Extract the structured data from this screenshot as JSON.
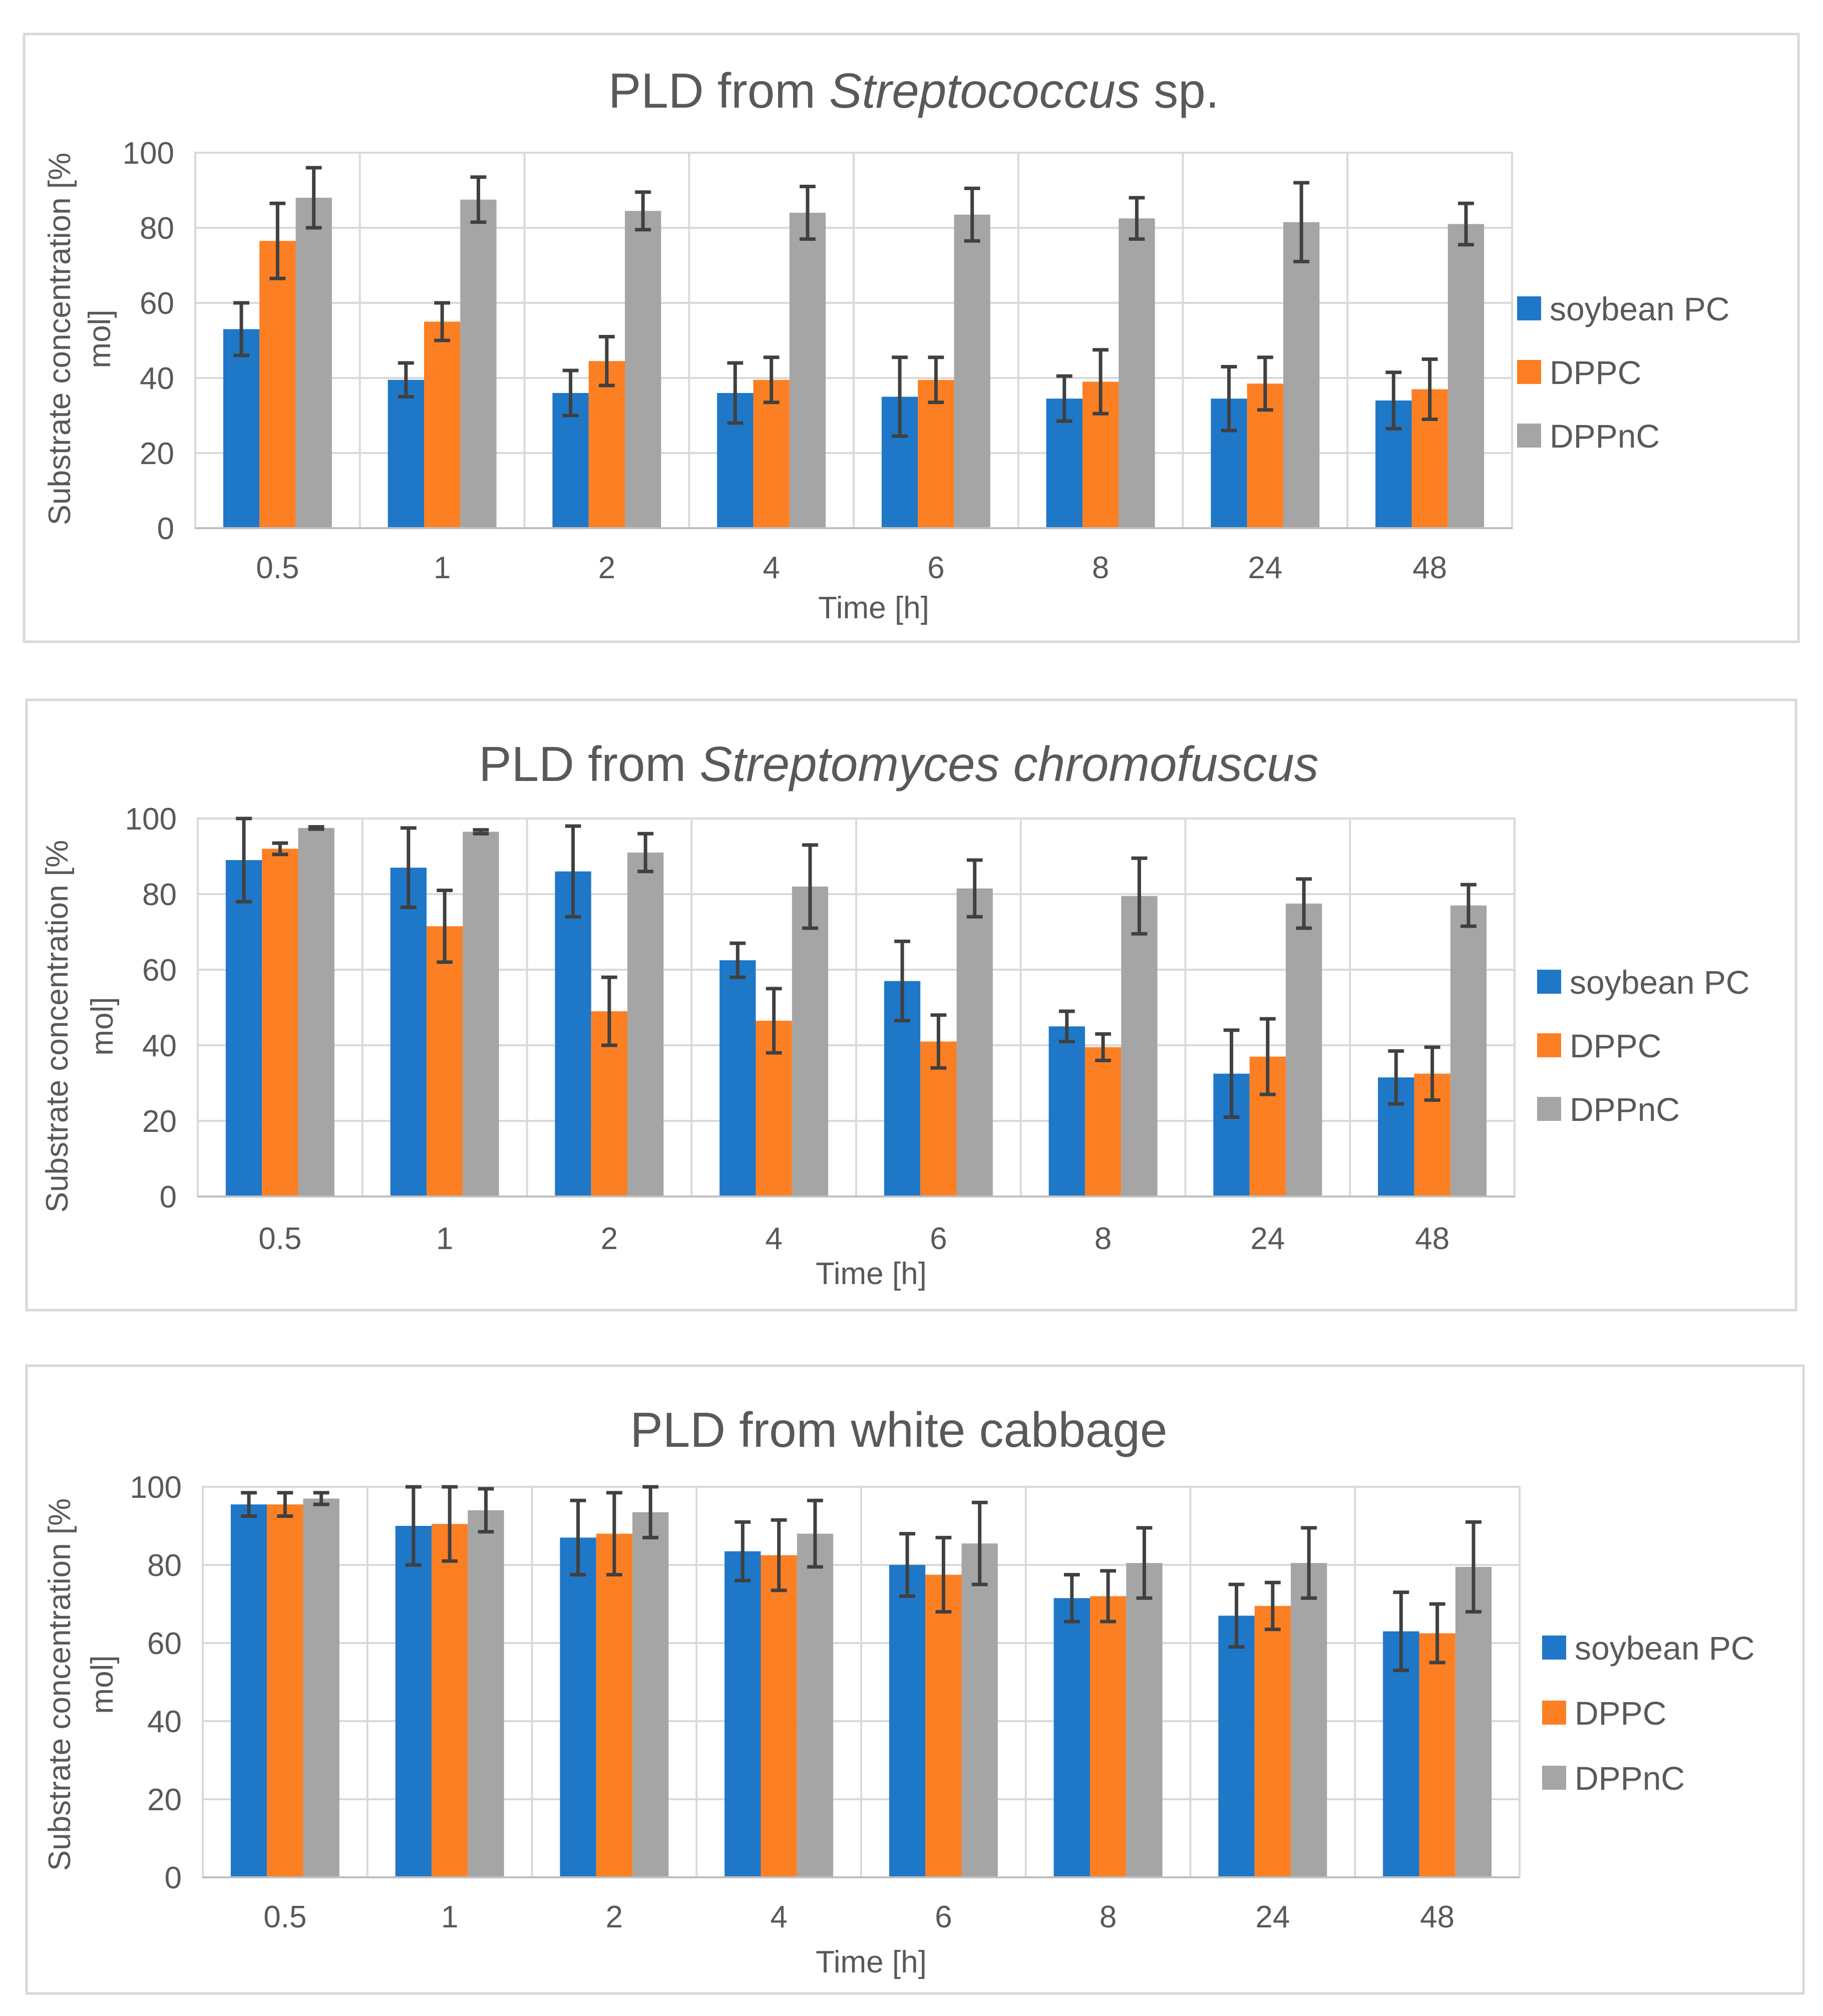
{
  "colors": {
    "soybean_pc": "#1f77c8",
    "dppc": "#fd7f23",
    "dppnc": "#a5a5a5",
    "error_bar": "#404040"
  },
  "chart_data": [
    {
      "type": "bar",
      "title_parts": [
        {
          "text": "PLD from ",
          "italic": false
        },
        {
          "text": "Streptococcus",
          "italic": true
        },
        {
          "text": " sp.",
          "italic": false
        }
      ],
      "xlabel": "Time [h]",
      "ylabel_lines": [
        "Substrate concentration [%",
        "mol]"
      ],
      "ylim": [
        0,
        100
      ],
      "yticks": [
        "0",
        "20",
        "40",
        "60",
        "80",
        "100"
      ],
      "categories": [
        "0.5",
        "1",
        "2",
        "4",
        "6",
        "8",
        "24",
        "48"
      ],
      "series": [
        {
          "name": "soybean PC",
          "color_key": "soybean_pc",
          "values": [
            53,
            39.5,
            36,
            36,
            35,
            34.5,
            34.5,
            34
          ],
          "errors": [
            7,
            4.5,
            6,
            8,
            10.5,
            6,
            8.5,
            7.5
          ]
        },
        {
          "name": "DPPC",
          "color_key": "dppc",
          "values": [
            76.5,
            55,
            44.5,
            39.5,
            39.5,
            39,
            38.5,
            37
          ],
          "errors": [
            10,
            5,
            6.5,
            6,
            6,
            8.5,
            7,
            8
          ]
        },
        {
          "name": "DPPnC",
          "color_key": "dppnc",
          "values": [
            88,
            87.5,
            84.5,
            84,
            83.5,
            82.5,
            81.5,
            81
          ],
          "errors": [
            8,
            6,
            5,
            7,
            7,
            5.5,
            10.5,
            5.5
          ]
        }
      ],
      "legend_position": "right"
    },
    {
      "type": "bar",
      "title_parts": [
        {
          "text": "PLD from ",
          "italic": false
        },
        {
          "text": "Streptomyces chromofuscus",
          "italic": true
        }
      ],
      "xlabel": "Time [h]",
      "ylabel_lines": [
        "Substrate concentration [%",
        "mol]"
      ],
      "ylim": [
        0,
        100
      ],
      "yticks": [
        "0",
        "20",
        "40",
        "60",
        "80",
        "100"
      ],
      "categories": [
        "0.5",
        "1",
        "2",
        "4",
        "6",
        "8",
        "24",
        "48"
      ],
      "series": [
        {
          "name": "soybean PC",
          "color_key": "soybean_pc",
          "values": [
            89,
            87,
            86,
            62.5,
            57,
            45,
            32.5,
            31.5
          ],
          "errors": [
            11,
            10.5,
            12,
            4.5,
            10.5,
            4,
            11.5,
            7
          ]
        },
        {
          "name": "DPPC",
          "color_key": "dppc",
          "values": [
            92,
            71.5,
            49,
            46.5,
            41,
            39.5,
            37,
            32.5
          ],
          "errors": [
            1.5,
            9.5,
            9,
            8.5,
            7,
            3.5,
            10,
            7
          ]
        },
        {
          "name": "DPPnC",
          "color_key": "dppnc",
          "values": [
            97.5,
            96.5,
            91,
            82,
            81.5,
            79.5,
            77.5,
            77
          ],
          "errors": [
            0.3,
            0.5,
            5,
            11,
            7.5,
            10,
            6.5,
            5.5
          ]
        }
      ],
      "legend_position": "right"
    },
    {
      "type": "bar",
      "title_parts": [
        {
          "text": "PLD from white cabbage",
          "italic": false
        }
      ],
      "xlabel": "Time [h]",
      "ylabel_lines": [
        "Substrate concentration [%",
        "mol]"
      ],
      "ylim": [
        0,
        100
      ],
      "yticks": [
        "0",
        "20",
        "40",
        "60",
        "80",
        "100"
      ],
      "categories": [
        "0.5",
        "1",
        "2",
        "4",
        "6",
        "8",
        "24",
        "48"
      ],
      "series": [
        {
          "name": "soybean PC",
          "color_key": "soybean_pc",
          "values": [
            95.5,
            90,
            87,
            83.5,
            80,
            71.5,
            67,
            63
          ],
          "errors": [
            3,
            10,
            9.5,
            7.5,
            8,
            6,
            8,
            10
          ]
        },
        {
          "name": "DPPC",
          "color_key": "dppc",
          "values": [
            95.5,
            90.5,
            88,
            82.5,
            77.5,
            72,
            69.5,
            62.5
          ],
          "errors": [
            3,
            9.5,
            10.5,
            9,
            9.5,
            6.5,
            6,
            7.5
          ]
        },
        {
          "name": "DPPnC",
          "color_key": "dppnc",
          "values": [
            97,
            94,
            93.5,
            88,
            85.5,
            80.5,
            80.5,
            79.5
          ],
          "errors": [
            1.5,
            5.5,
            6.5,
            8.5,
            10.5,
            9,
            9,
            11.5
          ]
        }
      ],
      "legend_position": "right"
    }
  ]
}
